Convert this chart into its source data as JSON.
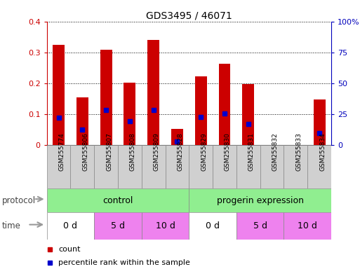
{
  "title": "GDS3495 / 46071",
  "samples": [
    "GSM255774",
    "GSM255806",
    "GSM255807",
    "GSM255808",
    "GSM255809",
    "GSM255828",
    "GSM255829",
    "GSM255830",
    "GSM255831",
    "GSM255832",
    "GSM255833",
    "GSM255834"
  ],
  "red_values": [
    0.325,
    0.155,
    0.308,
    0.202,
    0.34,
    0.053,
    0.222,
    0.263,
    0.197,
    0.0,
    0.0,
    0.148
  ],
  "blue_values": [
    0.088,
    0.05,
    0.113,
    0.078,
    0.115,
    0.013,
    0.092,
    0.103,
    0.068,
    0.0,
    0.0,
    0.04
  ],
  "ylim_left": [
    0,
    0.4
  ],
  "ylim_right": [
    0,
    100
  ],
  "yticks_left": [
    0,
    0.1,
    0.2,
    0.3,
    0.4
  ],
  "yticks_right": [
    0,
    25,
    50,
    75,
    100
  ],
  "ytick_labels_left": [
    "0",
    "0.1",
    "0.2",
    "0.3",
    "0.4"
  ],
  "ytick_labels_right": [
    "0",
    "25",
    "50",
    "75",
    "100%"
  ],
  "red_color": "#CC0000",
  "blue_color": "#0000CC",
  "bar_width": 0.5,
  "background_color": "#ffffff",
  "legend_red": "count",
  "legend_blue": "percentile rank within the sample",
  "left_tick_color": "#CC0000",
  "right_tick_color": "#0000BB",
  "protocol_color": "#90EE90",
  "time_color_white": "#ffffff",
  "time_color_pink": "#EE82EE",
  "arrow_color": "#999999",
  "label_color": "#444444",
  "xticklabel_bg": "#d0d0d0"
}
